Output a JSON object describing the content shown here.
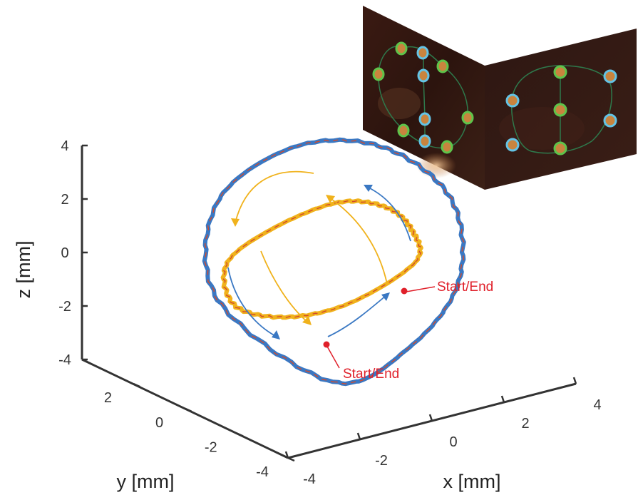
{
  "chart_data": {
    "type": "line",
    "projection": "3d",
    "title": "",
    "xlabel": "x [mm]",
    "ylabel": "y [mm]",
    "zlabel": "z [mm]",
    "xlim": [
      -4,
      4
    ],
    "ylim": [
      -4,
      4
    ],
    "zlim": [
      -4,
      4
    ],
    "x_ticks": [
      "-4",
      "-2",
      "0",
      "2",
      "4"
    ],
    "y_ticks": [
      "-4",
      "-2",
      "0",
      "2"
    ],
    "z_ticks": [
      "-4",
      "-2",
      "0",
      "2",
      "4"
    ],
    "grid": false,
    "series": [
      {
        "color": "#3a78c3",
        "dashed_overlay_color": "#d24a2c",
        "shape": "closed loop, approx. ellipse of half-width 3 mm, tilted",
        "x": [
          -1.5,
          0.5,
          2.3,
          3.0,
          2.3,
          0.5,
          -1.5,
          -2.4,
          -1.5
        ],
        "y": [
          -2.2,
          -2.4,
          -1.8,
          -0.5,
          1.2,
          2.1,
          2.3,
          1.0,
          -2.2
        ],
        "z": [
          -3.3,
          -2.6,
          -1.0,
          1.2,
          2.6,
          2.8,
          1.3,
          -1.4,
          -3.3
        ]
      },
      {
        "color": "#f0b21c",
        "dashed_overlay_color": "#d24a2c",
        "shape": "closed loop, approx. ellipse of half-width 3 mm, tilted",
        "x": [
          2.8,
          2.0,
          0.5,
          -1.0,
          -2.2,
          -2.3,
          -1.5,
          0.0,
          1.5,
          2.8
        ],
        "y": [
          0.6,
          -0.4,
          -1.5,
          -1.7,
          -0.8,
          0.8,
          1.6,
          1.7,
          1.3,
          0.6
        ],
        "z": [
          -1.6,
          0.3,
          2.2,
          3.0,
          2.0,
          0.0,
          -2.2,
          -3.2,
          -3.0,
          -1.6
        ]
      }
    ],
    "annotations": [
      {
        "text": "Start/End",
        "color": "#e0202a"
      },
      {
        "text": "Start/End",
        "color": "#e0202a"
      }
    ],
    "inset": {
      "type": "image",
      "description_name": "two-view photograph with tracked markers"
    }
  }
}
